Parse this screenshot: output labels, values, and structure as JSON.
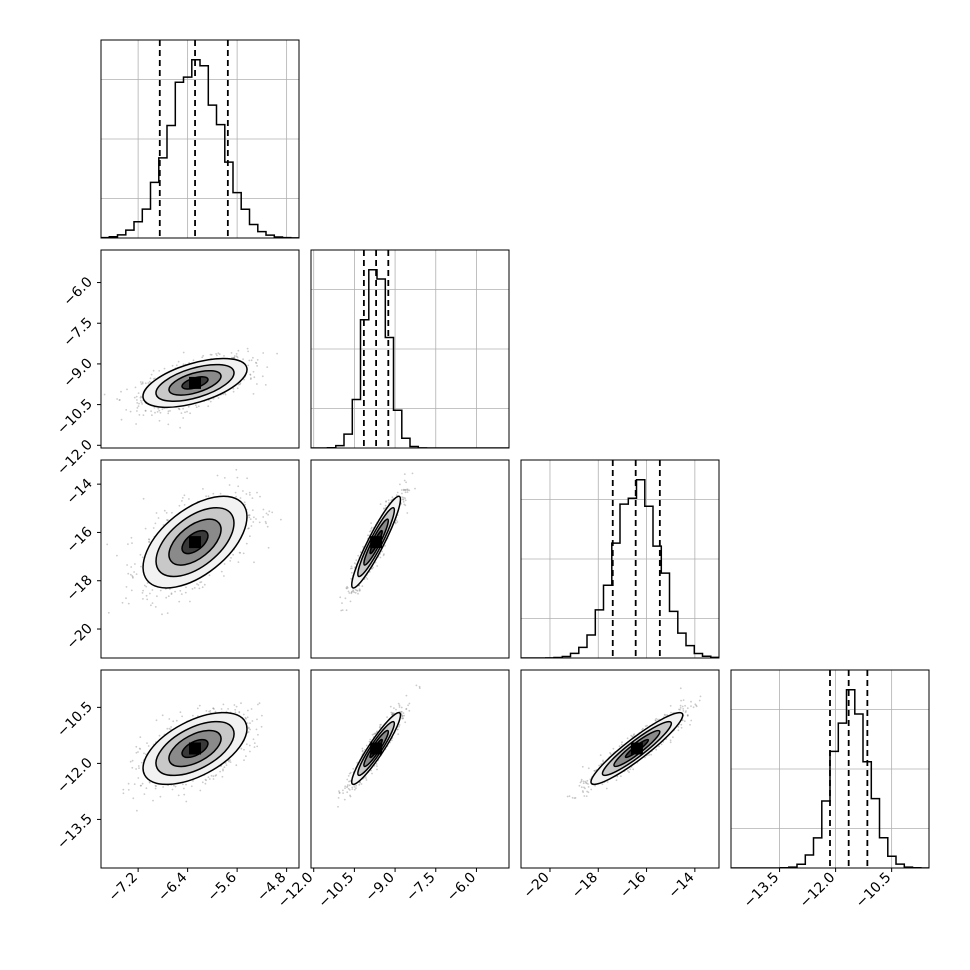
{
  "chart_data": {
    "type": "corner",
    "grid": true,
    "params": [
      {
        "index": 0,
        "range": [
          -7.8,
          -4.6
        ],
        "ticks": [
          -7.2,
          -6.4,
          -5.6,
          -4.8
        ],
        "tick_labels": [
          "−7.2",
          "−6.4",
          "−5.6",
          "−4.8"
        ],
        "mean": -6.28,
        "sd": 0.42
      },
      {
        "index": 1,
        "range": [
          -12.1,
          -4.8
        ],
        "ticks": [
          -12.0,
          -10.5,
          -9.0,
          -7.5,
          -6.0
        ],
        "tick_labels": [
          "−12.0",
          "−10.5",
          "−9.0",
          "−7.5",
          "−6.0"
        ],
        "mean": -9.7,
        "sd": 0.45
      },
      {
        "index": 2,
        "range": [
          -21.2,
          -13.0
        ],
        "ticks": [
          -20,
          -18,
          -16,
          -14
        ],
        "tick_labels": [
          "−20",
          "−18",
          "−16",
          "−14"
        ],
        "mean": -16.4,
        "sd": 0.95
      },
      {
        "index": 3,
        "range": [
          -14.8,
          -9.5
        ],
        "ticks": [
          -13.5,
          -12.0,
          -10.5
        ],
        "tick_labels": [
          "−13.5",
          "−12.0",
          "−10.5"
        ],
        "mean": -11.6,
        "sd": 0.48
      }
    ],
    "quantiles": [
      0.16,
      0.5,
      0.84
    ],
    "quantile_values": [
      [
        -6.85,
        -6.28,
        -5.75
      ],
      [
        -10.15,
        -9.7,
        -9.25
      ],
      [
        -17.4,
        -16.45,
        -15.45
      ],
      [
        -12.15,
        -11.65,
        -11.15
      ]
    ],
    "correlations": [
      {
        "pair": [
          1,
          0
        ],
        "rho": 0.55
      },
      {
        "pair": [
          2,
          0
        ],
        "rho": 0.55
      },
      {
        "pair": [
          2,
          1
        ],
        "rho": 0.93
      },
      {
        "pair": [
          3,
          0
        ],
        "rho": 0.55
      },
      {
        "pair": [
          3,
          1
        ],
        "rho": 0.93
      },
      {
        "pair": [
          3,
          2
        ],
        "rho": 0.93
      }
    ],
    "colors": {
      "line": "#000000",
      "grid": "#b0b0b0",
      "points": "#8c8c8c"
    }
  }
}
